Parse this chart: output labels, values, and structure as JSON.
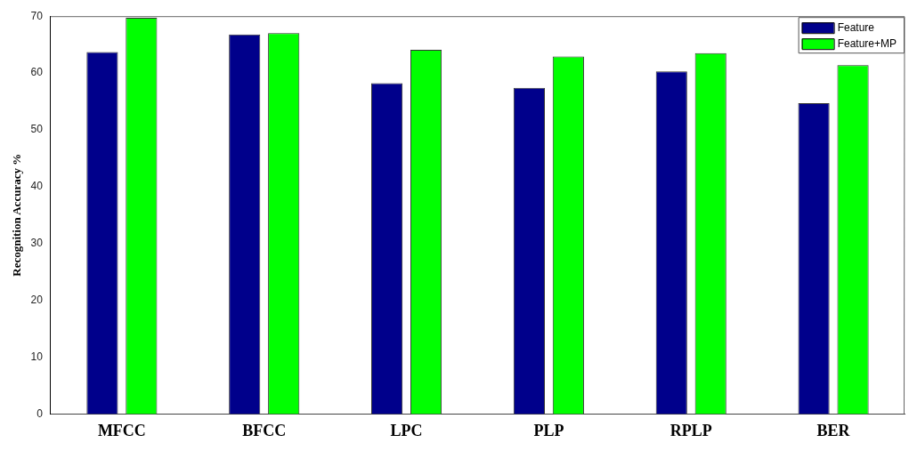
{
  "chart_data": {
    "type": "bar",
    "ylabel": "Recognition Accuracy %",
    "categories": [
      "MFCC",
      "BFCC",
      "LPC",
      "PLP",
      "RPLP",
      "BER"
    ],
    "series": [
      {
        "name": "Feature",
        "color": "#00008b",
        "values": [
          63.7,
          66.8,
          58.2,
          57.4,
          60.3,
          54.7
        ]
      },
      {
        "name": "Feature+MP",
        "color": "#00ff00",
        "values": [
          69.7,
          67.0,
          64.1,
          62.9,
          63.5,
          61.4
        ]
      }
    ],
    "ylim": [
      0,
      70
    ],
    "yticks": [
      0,
      10,
      20,
      30,
      40,
      50,
      60,
      70
    ],
    "grid": false,
    "legend": "top right"
  }
}
